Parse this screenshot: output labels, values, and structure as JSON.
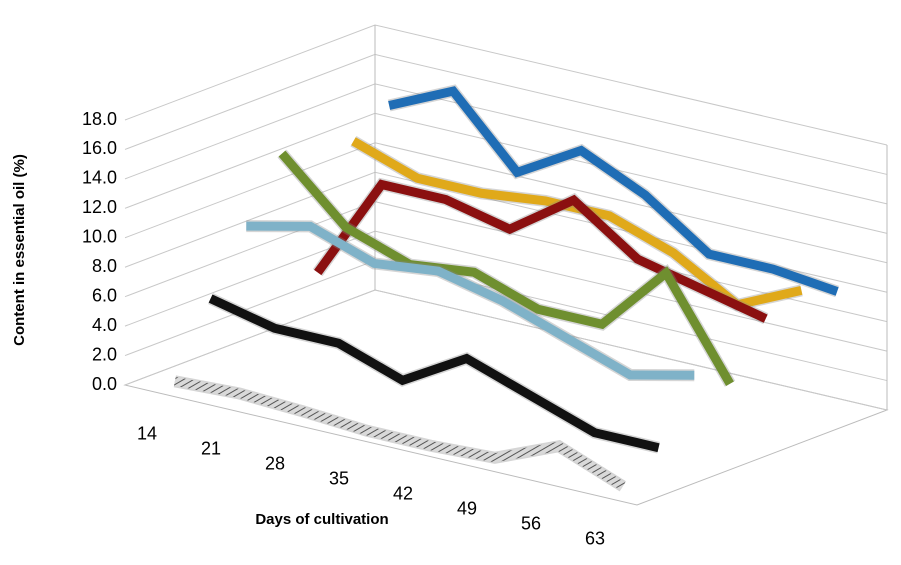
{
  "chart_data": {
    "type": "line3d",
    "y_label": "Content in essential oil (%)",
    "x_label": "Days of cultivation",
    "categories": [
      "14",
      "21",
      "28",
      "35",
      "42",
      "49",
      "56",
      "63"
    ],
    "ylim": [
      0,
      18
    ],
    "yticks": [
      {
        "value": 0,
        "label": "0.0"
      },
      {
        "value": 2,
        "label": "2.0"
      },
      {
        "value": 4,
        "label": "4.0"
      },
      {
        "value": 6,
        "label": "6.0"
      },
      {
        "value": 8,
        "label": "8.0"
      },
      {
        "value": 10,
        "label": "10.0"
      },
      {
        "value": 12,
        "label": "12.0"
      },
      {
        "value": 14,
        "label": "14.0"
      },
      {
        "value": 16,
        "label": "16.0"
      },
      {
        "value": 18,
        "label": "18.0"
      }
    ],
    "grid": true,
    "series": [
      {
        "color": "#a6a6a6",
        "pattern": "hatch",
        "values": [
          0.3,
          0.5,
          0.3,
          0.0,
          0.0,
          0.2,
          2.0,
          0.3
        ]
      },
      {
        "color": "#111111",
        "values": [
          5.0,
          4.0,
          4.0,
          2.5,
          5.0,
          3.5,
          2.0,
          2.0
        ]
      },
      {
        "color": "#7fb2c8",
        "values": [
          9.0,
          10.0,
          8.5,
          9.0,
          8.0,
          6.5,
          5.0,
          6.0
        ]
      },
      {
        "color": "#6f8f2f",
        "values": [
          13.0,
          9.0,
          7.5,
          8.0,
          6.5,
          6.5,
          11.0,
          4.5
        ]
      },
      {
        "color": "#8b1010",
        "values": [
          4.0,
          11.0,
          11.0,
          10.0,
          13.0,
          10.0,
          9.0,
          8.0
        ]
      },
      {
        "color": "#e0a91a",
        "values": [
          12.0,
          10.5,
          10.5,
          11.0,
          11.0,
          9.5,
          7.0,
          9.0
        ]
      },
      {
        "color": "#1f6db5",
        "values": [
          13.5,
          15.5,
          11.0,
          13.5,
          11.5,
          8.5,
          8.5,
          8.0
        ]
      }
    ]
  }
}
